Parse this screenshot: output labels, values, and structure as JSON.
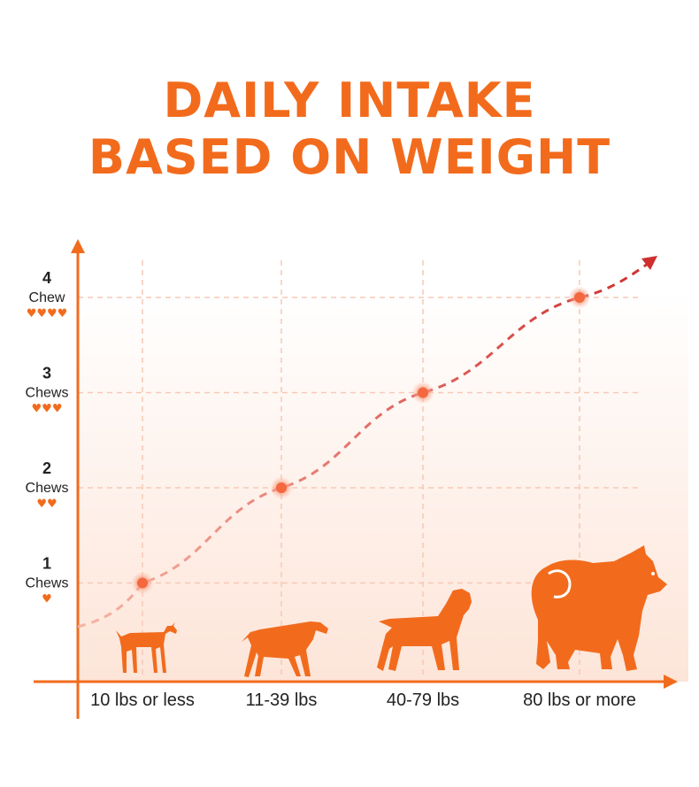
{
  "title_lines": [
    "DAILY INTAKE",
    "BASED ON WEIGHT"
  ],
  "colors": {
    "accent": "#f26b1d",
    "curve": "#d9383a",
    "grid": "#f6c9b5",
    "gradient": "#fde3d6"
  },
  "chart_data": {
    "type": "line",
    "categories": [
      "10 lbs or less",
      "11-39 lbs",
      "40-79 lbs",
      "80 lbs or more"
    ],
    "series": [
      {
        "values": [
          1,
          2,
          3,
          4
        ]
      }
    ],
    "y_ticks": [
      {
        "value": 1,
        "number": "1",
        "unit": "Chews",
        "hearts": "♥"
      },
      {
        "value": 2,
        "number": "2",
        "unit": "Chews",
        "hearts": "♥♥"
      },
      {
        "value": 3,
        "number": "3",
        "unit": "Chews",
        "hearts": "♥♥♥"
      },
      {
        "value": 4,
        "number": "4",
        "unit": "Chew",
        "hearts": "♥♥♥♥"
      }
    ],
    "ylim": [
      0,
      4.5
    ],
    "grid": true,
    "icons": [
      "small-dog-icon",
      "medium-dog-icon",
      "large-dog-icon",
      "giant-dog-icon"
    ]
  }
}
